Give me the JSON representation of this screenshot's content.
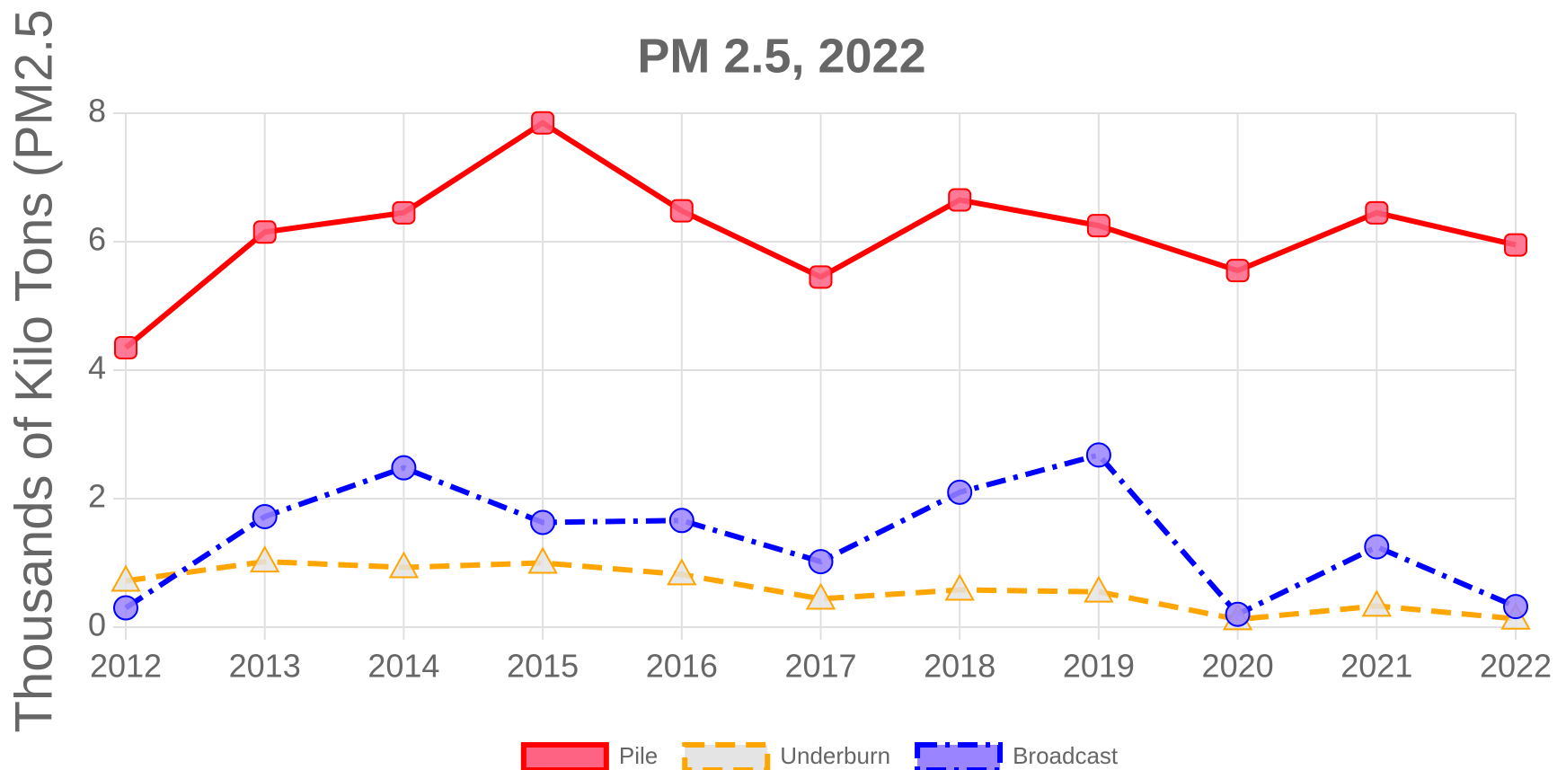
{
  "chart_data": {
    "type": "line",
    "title": "PM 2.5, 2022",
    "ylabel": "Thousands of Kilo Tons (PM2.5",
    "x": [
      2012,
      2013,
      2014,
      2015,
      2016,
      2017,
      2018,
      2019,
      2020,
      2021,
      2022
    ],
    "xlim": [
      2012,
      2022
    ],
    "xticks": [
      2012,
      2013,
      2014,
      2015,
      2016,
      2017,
      2018,
      2019,
      2020,
      2021,
      2022
    ],
    "ylim": [
      0,
      8
    ],
    "yticks": [
      0,
      2,
      4,
      6,
      8
    ],
    "grid": true,
    "legend": "bottom",
    "series": [
      {
        "name": "Pile",
        "color": "#ff0000",
        "fill": "#ff6384",
        "dash": "solid",
        "marker": "square",
        "values": [
          4.35,
          6.15,
          6.45,
          7.85,
          6.48,
          5.45,
          6.65,
          6.25,
          5.55,
          6.45,
          5.95
        ]
      },
      {
        "name": "Underburn",
        "color": "#ffa500",
        "fill": "#e4e4e4",
        "dash": "dashed",
        "marker": "triangle",
        "values": [
          0.72,
          1.02,
          0.93,
          1.0,
          0.82,
          0.44,
          0.58,
          0.55,
          0.12,
          0.33,
          0.13
        ]
      },
      {
        "name": "Broadcast",
        "color": "#0000ff",
        "fill": "#9b84ff",
        "dash": "dashdot",
        "marker": "circle",
        "values": [
          0.3,
          1.72,
          2.48,
          1.63,
          1.66,
          1.02,
          2.1,
          2.68,
          0.2,
          1.25,
          0.32
        ]
      }
    ]
  }
}
